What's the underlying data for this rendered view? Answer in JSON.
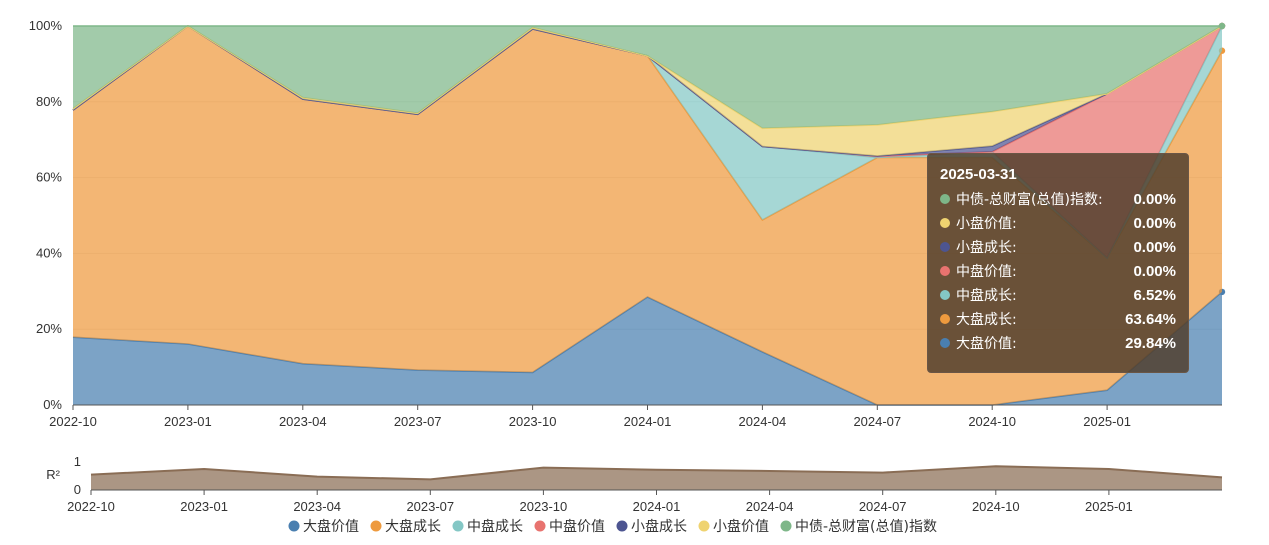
{
  "chart_data": [
    {
      "type": "area",
      "stacked": true,
      "x": [
        "2022-10",
        "2023-01",
        "2023-04",
        "2023-07",
        "2023-10",
        "2024-01",
        "2024-04",
        "2024-07",
        "2024-10",
        "2025-01",
        "2025-03-31"
      ],
      "xticks": [
        "2022-10",
        "2023-01",
        "2023-04",
        "2023-07",
        "2023-10",
        "2024-01",
        "2024-04",
        "2024-07",
        "2024-10",
        "2025-01"
      ],
      "yticks": [
        "0%",
        "20%",
        "40%",
        "60%",
        "80%",
        "100%"
      ],
      "ylim": [
        0,
        100
      ],
      "grid": true,
      "series": [
        {
          "name": "大盘价值",
          "color": "#4a7fb0",
          "values": [
            17.9,
            16.1,
            10.9,
            9.2,
            8.6,
            28.5,
            14.0,
            0,
            0,
            3.9,
            29.84
          ]
        },
        {
          "name": "大盘成长",
          "color": "#ee9a3e",
          "values": [
            59.9,
            83.9,
            69.8,
            67.5,
            90.6,
            63.6,
            34.8,
            65.3,
            65.3,
            34.9,
            63.64
          ]
        },
        {
          "name": "中盘成长",
          "color": "#84c7c5",
          "values": [
            0,
            0,
            0,
            0,
            0,
            0,
            19.4,
            0,
            1.5,
            0,
            6.52
          ]
        },
        {
          "name": "中盘价值",
          "color": "#e8736f",
          "values": [
            0,
            0,
            0,
            0,
            0,
            0,
            0,
            0.4,
            0,
            43.3,
            0
          ]
        },
        {
          "name": "小盘成长",
          "color": "#4d5591",
          "values": [
            0,
            0,
            0,
            0,
            0,
            0,
            0,
            0,
            1.5,
            0,
            0
          ]
        },
        {
          "name": "小盘价值",
          "color": "#efd370",
          "values": [
            0.4,
            0,
            0.4,
            0.3,
            0.4,
            0,
            4.8,
            8.2,
            9.1,
            0,
            0
          ]
        },
        {
          "name": "中债-总财富(总值)指数",
          "color": "#7eb789",
          "values": [
            21.8,
            0,
            18.9,
            23.0,
            0.4,
            7.9,
            27.0,
            26.1,
            22.6,
            17.9,
            0
          ]
        }
      ]
    },
    {
      "type": "area",
      "ylabel": "R²",
      "yticks": [
        "0",
        "1"
      ],
      "ylim": [
        0,
        1
      ],
      "x": [
        "2022-10",
        "2023-01",
        "2023-04",
        "2023-07",
        "2023-10",
        "2024-01",
        "2024-04",
        "2024-07",
        "2024-10",
        "2025-01",
        "2025-03-31"
      ],
      "xticks": [
        "2022-10",
        "2023-01",
        "2023-04",
        "2023-07",
        "2023-10",
        "2024-01",
        "2024-04",
        "2024-07",
        "2024-10",
        "2025-01"
      ],
      "color": "#8a6d55",
      "values": [
        0.55,
        0.75,
        0.48,
        0.38,
        0.8,
        0.72,
        0.68,
        0.62,
        0.85,
        0.75,
        0.45
      ]
    }
  ],
  "tooltip": {
    "date": "2025-03-31",
    "rows": [
      {
        "name": "中债-总财富(总值)指数:",
        "value": "0.00%",
        "color": "#7eb789"
      },
      {
        "name": "小盘价值:",
        "value": "0.00%",
        "color": "#efd370"
      },
      {
        "name": "小盘成长:",
        "value": "0.00%",
        "color": "#4d5591"
      },
      {
        "name": "中盘价值:",
        "value": "0.00%",
        "color": "#e8736f"
      },
      {
        "name": "中盘成长:",
        "value": "6.52%",
        "color": "#84c7c5"
      },
      {
        "name": "大盘成长:",
        "value": "63.64%",
        "color": "#ee9a3e"
      },
      {
        "name": "大盘价值:",
        "value": "29.84%",
        "color": "#4a7fb0"
      }
    ]
  }
}
